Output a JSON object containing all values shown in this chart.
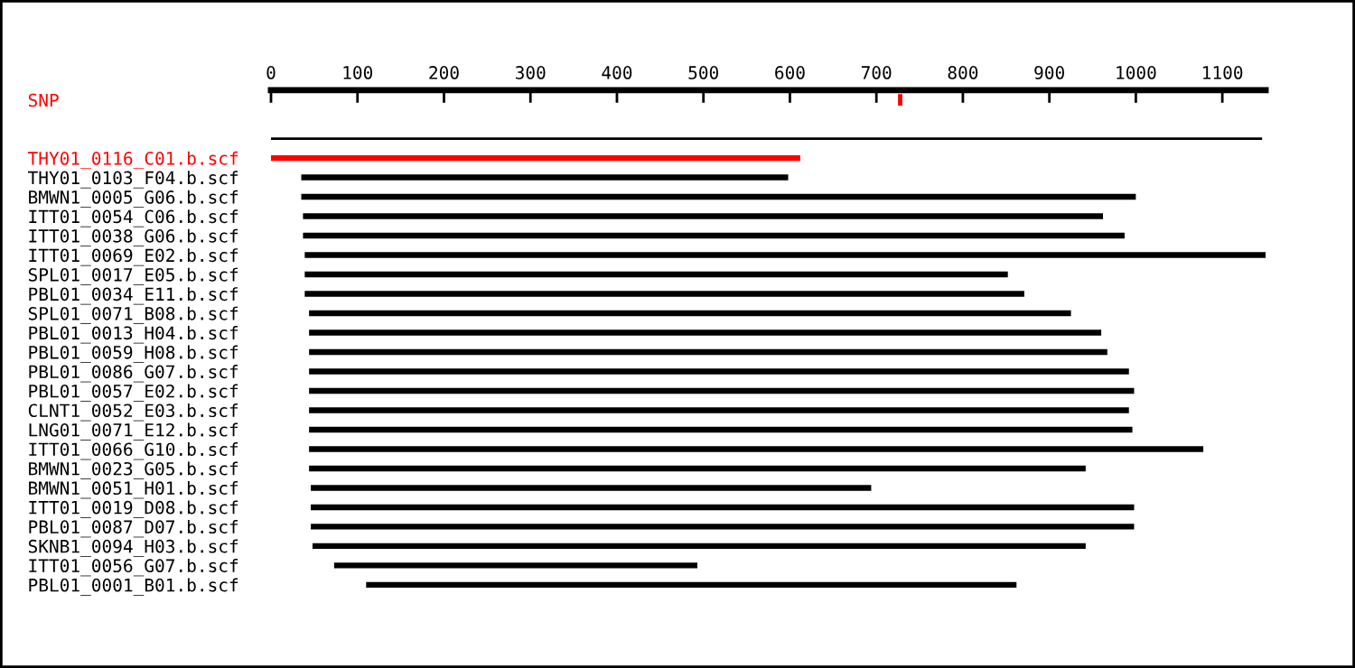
{
  "chart_data": {
    "type": "bar",
    "orientation": "horizontal",
    "categories": [
      "SNP",
      null,
      null,
      "THY01_0116_C01.b.scf",
      "THY01_0103_F04.b.scf",
      "BMWN1_0005_G06.b.scf",
      "ITT01_0054_C06.b.scf",
      "ITT01_0038_G06.b.scf",
      "ITT01_0069_E02.b.scf",
      "SPL01_0017_E05.b.scf",
      "PBL01_0034_E11.b.scf",
      "SPL01_0071_B08.b.scf",
      "PBL01_0013_H04.b.scf",
      "PBL01_0059_H08.b.scf",
      "PBL01_0086_G07.b.scf",
      "PBL01_0057_E02.b.scf",
      "CLNT1_0052_E03.b.scf",
      "LNG01_0071_E12.b.scf",
      "ITT01_0066_G10.b.scf",
      "BMWN1_0023_G05.b.scf",
      "BMWN1_0051_H01.b.scf",
      "ITT01_0019_D08.b.scf",
      "PBL01_0087_D07.b.scf",
      "SKNB1_0094_H03.b.scf",
      "ITT01_0056_G07.b.scf",
      "PBL01_0001_B01.b.scf"
    ],
    "base": [
      725,
      null,
      0,
      0,
      35,
      35,
      37,
      37,
      39,
      39,
      39,
      44,
      44,
      44,
      44,
      44,
      44,
      44,
      44,
      44,
      46,
      46,
      46,
      48,
      73,
      110
    ],
    "values": [
      5,
      null,
      1146,
      612,
      563,
      965,
      925,
      950,
      1111,
      813,
      832,
      881,
      916,
      923,
      948,
      954,
      948,
      952,
      1034,
      898,
      648,
      952,
      952,
      894,
      420,
      752
    ],
    "colors": [
      "#ff0000",
      null,
      "#000000",
      "#ff0000",
      "#000000",
      "#000000",
      "#000000",
      "#000000",
      "#000000",
      "#000000",
      "#000000",
      "#000000",
      "#000000",
      "#000000",
      "#000000",
      "#000000",
      "#000000",
      "#000000",
      "#000000",
      "#000000",
      "#000000",
      "#000000",
      "#000000",
      "#000000",
      "#000000",
      "#000000"
    ],
    "xlim": [
      0,
      1150
    ],
    "xticks": [
      0,
      100,
      200,
      300,
      400,
      500,
      600,
      700,
      800,
      900,
      1000,
      1100
    ]
  }
}
